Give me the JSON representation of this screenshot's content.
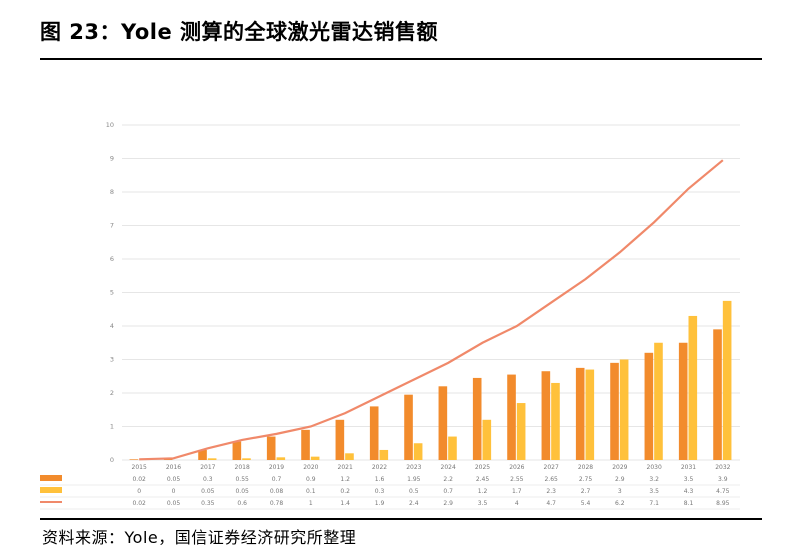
{
  "title": "图 23：Yole 测算的全球激光雷达销售额",
  "source": "资料来源：Yole，国信证券经济研究所整理",
  "chart_data": {
    "type": "bar",
    "categories": [
      "2015",
      "2016",
      "2017",
      "2018",
      "2019",
      "2020",
      "2021",
      "2022",
      "2023",
      "2024",
      "2025",
      "2026",
      "2027",
      "2028",
      "2029",
      "2030",
      "2031",
      "2032"
    ],
    "series": [
      {
        "name": "",
        "type": "bar",
        "color": "#F28B2C",
        "values": [
          0.02,
          0.05,
          0.3,
          0.55,
          0.7,
          0.9,
          1.2,
          1.6,
          1.95,
          2.2,
          2.45,
          2.55,
          2.65,
          2.75,
          2.9,
          3.2,
          3.5,
          3.9
        ]
      },
      {
        "name": "",
        "type": "bar",
        "color": "#FFC13B",
        "values": [
          0,
          0,
          0.05,
          0.05,
          0.08,
          0.1,
          0.2,
          0.3,
          0.5,
          0.7,
          1.2,
          1.7,
          2.3,
          2.7,
          3.0,
          3.5,
          4.3,
          4.75
        ]
      },
      {
        "name": "",
        "type": "line",
        "color": "#F0896A",
        "values": [
          0.02,
          0.05,
          0.35,
          0.6,
          0.78,
          1.0,
          1.4,
          1.9,
          2.4,
          2.9,
          3.5,
          4.0,
          4.7,
          5.4,
          6.2,
          7.1,
          8.1,
          8.95
        ]
      }
    ],
    "ylim": [
      0,
      10
    ],
    "yticks": [
      0,
      1,
      2,
      3,
      4,
      5,
      6,
      7,
      8,
      9,
      10
    ],
    "grid": true,
    "legend": "bottom (data table)"
  }
}
